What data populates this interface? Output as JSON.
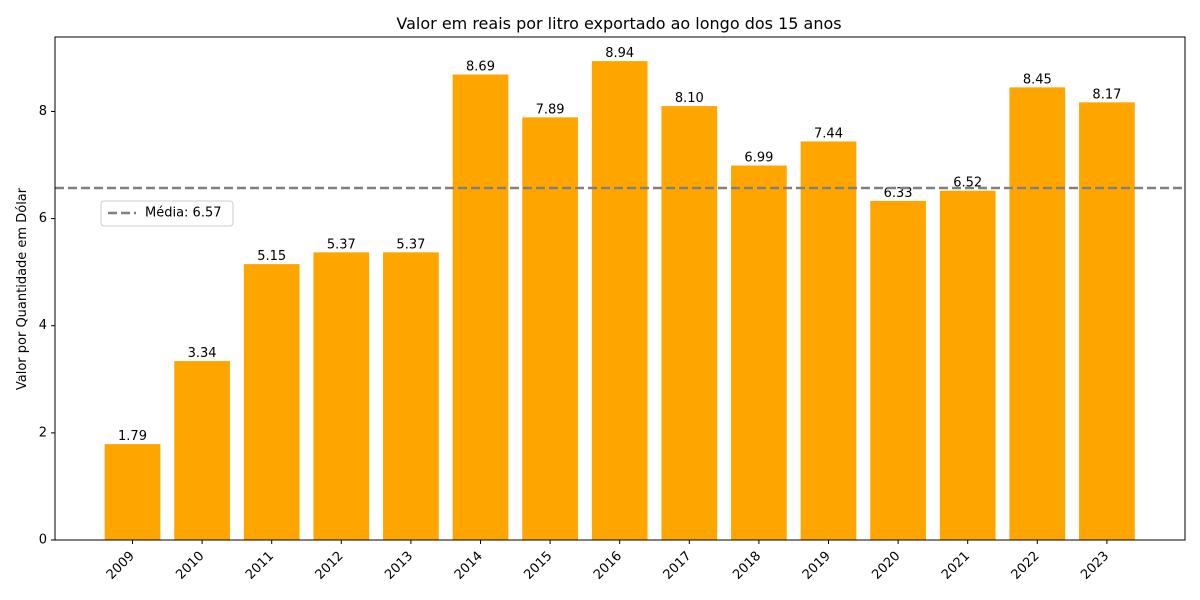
{
  "chart_data": {
    "type": "bar",
    "title": "Valor em reais por litro exportado ao longo dos 15 anos",
    "xlabel": "",
    "ylabel": "Valor por Quantidade em Dólar",
    "categories": [
      "2009",
      "2010",
      "2011",
      "2012",
      "2013",
      "2014",
      "2015",
      "2016",
      "2017",
      "2018",
      "2019",
      "2020",
      "2021",
      "2022",
      "2023"
    ],
    "values": [
      1.79,
      3.34,
      5.15,
      5.37,
      5.37,
      8.69,
      7.89,
      8.94,
      8.1,
      6.99,
      7.44,
      6.33,
      6.52,
      8.45,
      8.17
    ],
    "value_labels": [
      "1.79",
      "3.34",
      "5.15",
      "5.37",
      "5.37",
      "8.69",
      "7.89",
      "8.94",
      "8.10",
      "6.99",
      "7.44",
      "6.33",
      "6.52",
      "8.45",
      "8.17"
    ],
    "ylim": [
      0,
      9.39
    ],
    "yticks": [
      0,
      2,
      4,
      6,
      8
    ],
    "bar_color": "#FFA500",
    "mean_line": {
      "value": 6.57,
      "label": "Média: 6.57",
      "color": "#808080",
      "style": "dashed"
    },
    "legend": {
      "placement": "center-left",
      "entries": [
        "Média: 6.57"
      ]
    },
    "grid": false
  }
}
